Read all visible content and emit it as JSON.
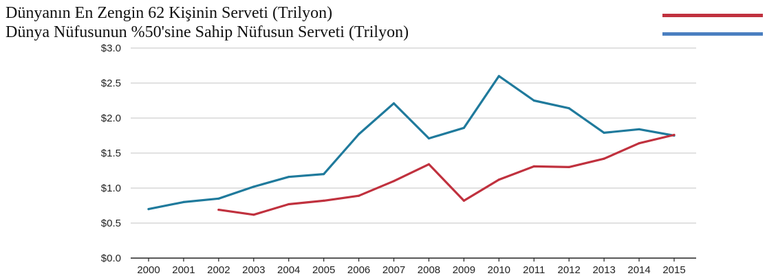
{
  "chart_data": {
    "type": "line",
    "title": "",
    "xlabel": "",
    "ylabel": "",
    "x": [
      "2000",
      "2001",
      "2002",
      "2003",
      "2004",
      "2005",
      "2006",
      "2007",
      "2008",
      "2009",
      "2010",
      "2011",
      "2012",
      "2013",
      "2014",
      "2015"
    ],
    "ylim": [
      0,
      3
    ],
    "yticks": [
      0,
      0.5,
      1.0,
      1.5,
      2.0,
      2.5,
      3.0
    ],
    "ytick_labels": [
      "$0.0",
      "$0.5",
      "$1.0",
      "$1.5",
      "$2.0",
      "$2.5",
      "$3.0"
    ],
    "grid": true,
    "legend_position": "top",
    "series": [
      {
        "name": "Dünyanın En Zengin 62 Kişinin Serveti (Trilyon)",
        "color": "#c0313e",
        "values": [
          null,
          null,
          0.69,
          0.62,
          0.77,
          0.82,
          0.89,
          1.1,
          1.34,
          0.82,
          1.12,
          1.31,
          1.3,
          1.42,
          1.64,
          1.76
        ]
      },
      {
        "name": "Dünya Nüfusunun %50'sine Sahip Nüfusun Serveti (Trilyon)",
        "color": "#1f7a9c",
        "legend_color": "#4a7fc0",
        "values": [
          0.7,
          0.8,
          0.85,
          1.02,
          1.16,
          1.2,
          1.77,
          2.21,
          1.71,
          1.86,
          2.6,
          2.25,
          2.14,
          1.79,
          1.84,
          1.75
        ]
      }
    ]
  }
}
